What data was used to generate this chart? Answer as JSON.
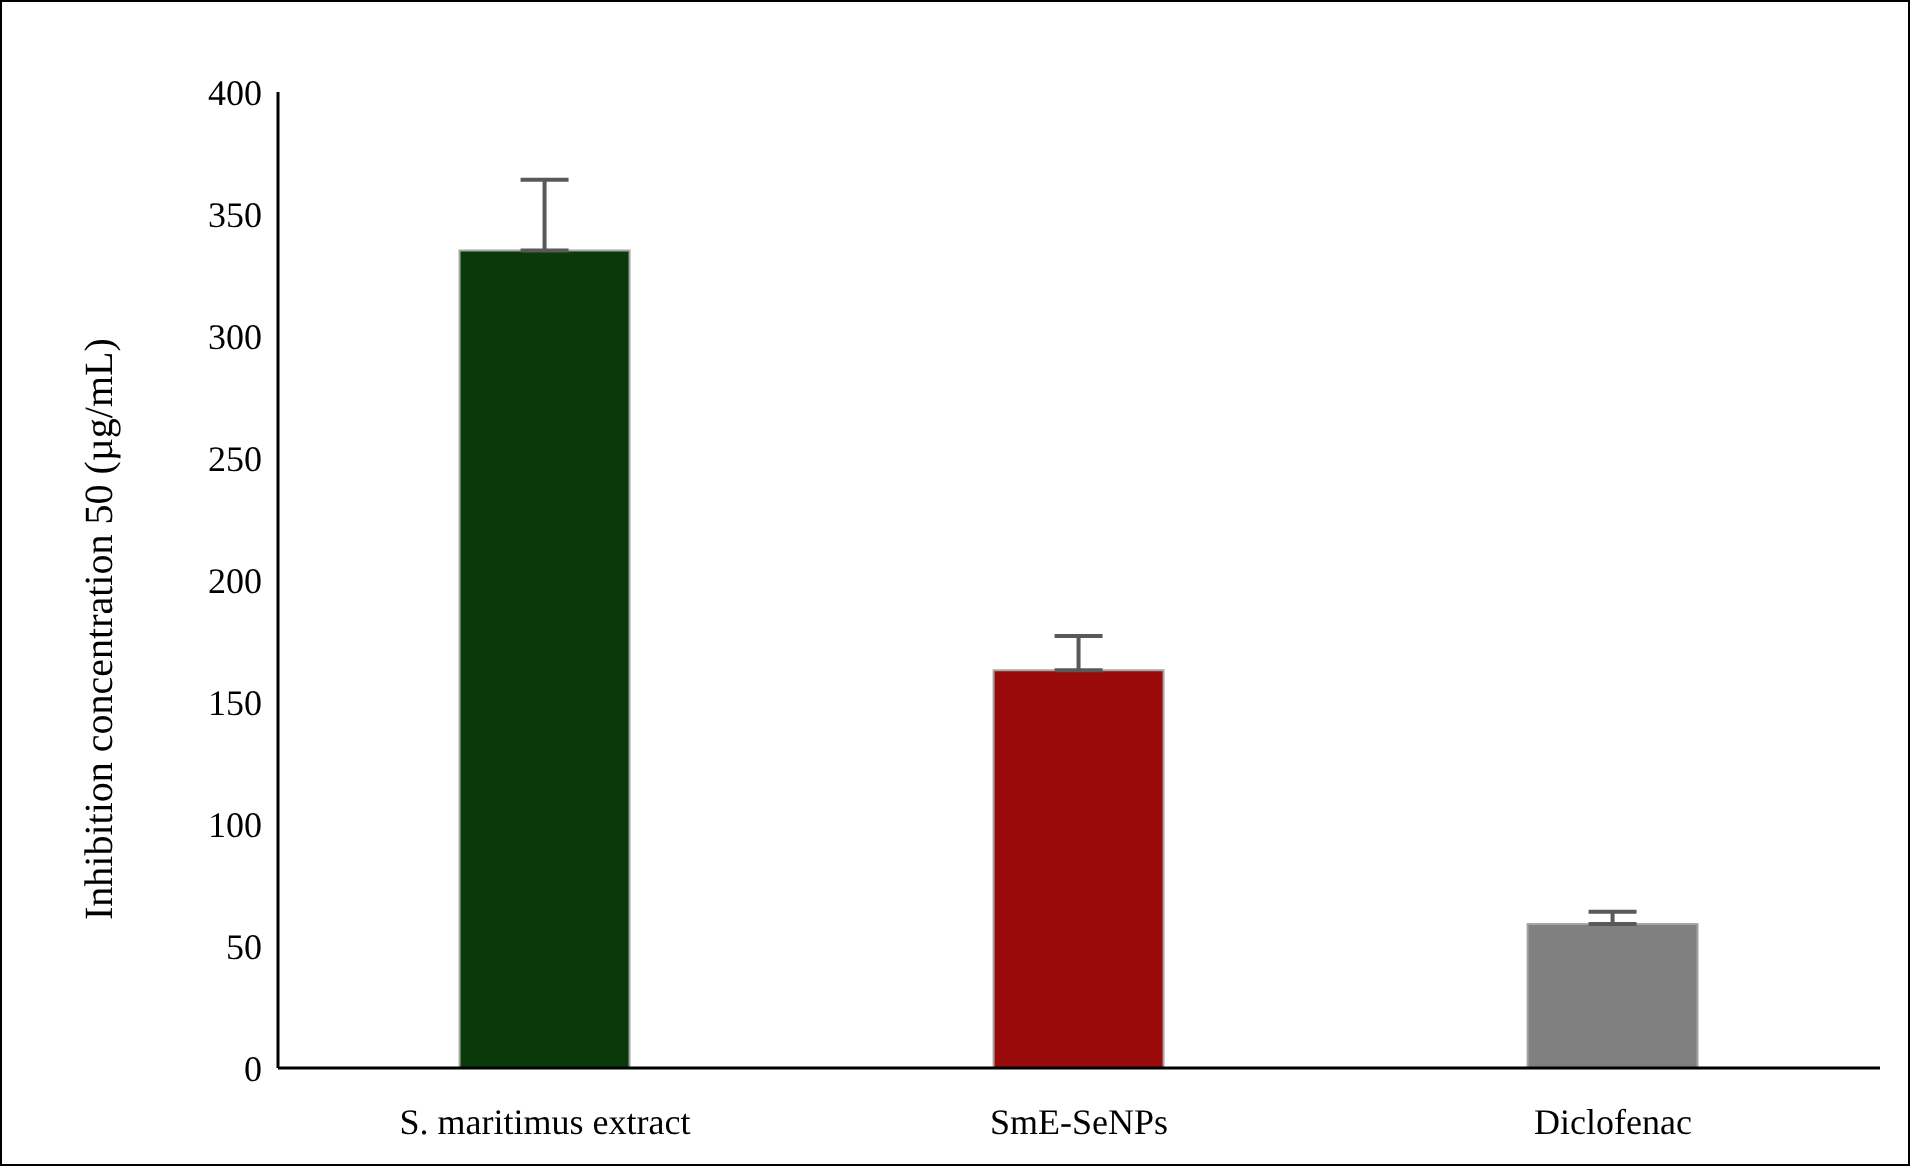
{
  "chart_data": {
    "type": "bar",
    "ylabel": "Inhibition concentration 50 (µg/mL)",
    "categories": [
      "S. maritimus extract",
      "SmE-SeNPs",
      "Diclofenac"
    ],
    "values": [
      335,
      163,
      59
    ],
    "colors": [
      "#0a3a0a",
      "#9b0a0a",
      "#808080"
    ],
    "errors": [
      [
        335,
        364
      ],
      [
        163,
        177
      ],
      [
        59,
        64
      ]
    ],
    "ylim": [
      0,
      400
    ],
    "yticks": [
      0,
      50,
      100,
      150,
      200,
      250,
      300,
      350,
      400
    ],
    "grid": false,
    "legend": false
  }
}
